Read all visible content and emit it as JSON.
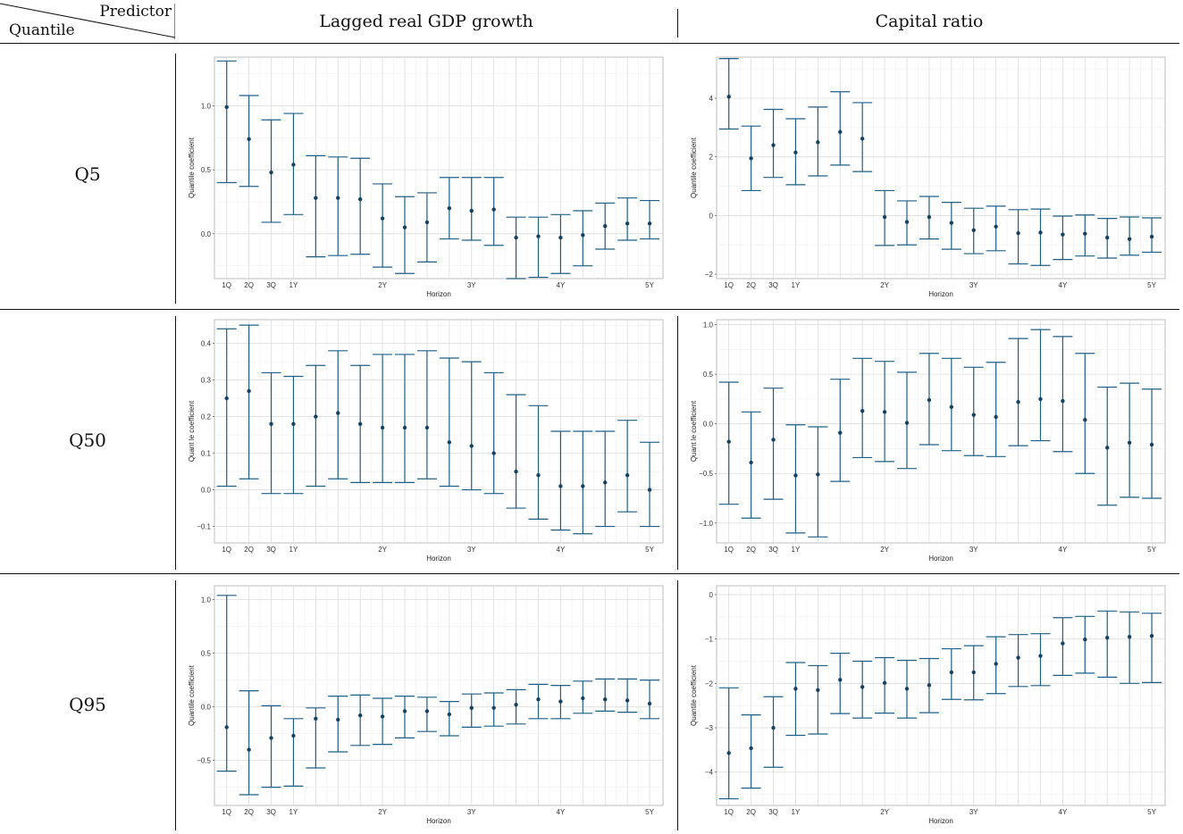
{
  "header": {
    "corner_predictor": "Predictor",
    "corner_quantile": "Quantile",
    "columns": [
      "Lagged real GDP growth",
      "Capital ratio"
    ]
  },
  "rows": [
    "Q5",
    "Q50",
    "Q95"
  ],
  "colors": {
    "series": "#1f5f86",
    "grid": "#dcdcdc",
    "panel_border": "#bdbdbd"
  },
  "chart_data": [
    {
      "type": "scatter",
      "panel": "Q5 / Lagged real GDP growth",
      "xlabel": "Horizon",
      "ylabel": "Quantile coefficient",
      "x_tick_labels": [
        "1Q",
        "2Q",
        "3Q",
        "1Y",
        "2Y",
        "3Y",
        "4Y",
        "5Y"
      ],
      "x_tick_positions": [
        1,
        2,
        3,
        4,
        8,
        12,
        16,
        20
      ],
      "ylim": [
        -0.35,
        1.38
      ],
      "yticks": [
        0.0,
        0.5,
        1.0
      ],
      "ytick_labels": [
        "0.0",
        "0.5",
        "1.0"
      ],
      "x": [
        1,
        2,
        3,
        4,
        5,
        6,
        7,
        8,
        9,
        10,
        11,
        12,
        13,
        14,
        15,
        16,
        17,
        18,
        19,
        20
      ],
      "estimate": [
        0.99,
        0.74,
        0.48,
        0.54,
        0.28,
        0.28,
        0.27,
        0.12,
        0.05,
        0.09,
        0.2,
        0.18,
        0.19,
        -0.03,
        -0.02,
        -0.03,
        -0.01,
        0.06,
        0.08,
        0.08
      ],
      "lower": [
        0.4,
        0.37,
        0.09,
        0.15,
        -0.18,
        -0.17,
        -0.16,
        -0.26,
        -0.31,
        -0.22,
        -0.04,
        -0.05,
        -0.09,
        -0.35,
        -0.34,
        -0.31,
        -0.25,
        -0.12,
        -0.05,
        -0.04
      ],
      "upper": [
        1.35,
        1.08,
        0.89,
        0.94,
        0.61,
        0.6,
        0.59,
        0.39,
        0.29,
        0.32,
        0.44,
        0.44,
        0.44,
        0.13,
        0.13,
        0.15,
        0.18,
        0.24,
        0.28,
        0.26
      ]
    },
    {
      "type": "scatter",
      "panel": "Q5 / Capital ratio",
      "xlabel": "Horizon",
      "ylabel": "Quantile coefficient",
      "x_tick_labels": [
        "1Q",
        "2Q",
        "3Q",
        "1Y",
        "2Y",
        "3Y",
        "4Y",
        "5Y"
      ],
      "x_tick_positions": [
        1,
        2,
        3,
        4,
        8,
        12,
        16,
        20
      ],
      "ylim": [
        -2.15,
        5.4
      ],
      "yticks": [
        -2,
        0,
        2,
        4
      ],
      "ytick_labels": [
        "−2",
        "0",
        "2",
        "4"
      ],
      "x": [
        1,
        2,
        3,
        4,
        5,
        6,
        7,
        8,
        9,
        10,
        11,
        12,
        13,
        14,
        15,
        16,
        17,
        18,
        19,
        20
      ],
      "estimate": [
        4.05,
        1.95,
        2.4,
        2.15,
        2.5,
        2.85,
        2.62,
        -0.05,
        -0.22,
        -0.05,
        -0.25,
        -0.5,
        -0.38,
        -0.6,
        -0.58,
        -0.65,
        -0.62,
        -0.75,
        -0.8,
        -0.72
      ],
      "lower": [
        2.95,
        0.85,
        1.3,
        1.05,
        1.35,
        1.72,
        1.5,
        -1.02,
        -1.0,
        -0.8,
        -1.15,
        -1.3,
        -1.2,
        -1.65,
        -1.7,
        -1.5,
        -1.38,
        -1.45,
        -1.35,
        -1.25
      ],
      "upper": [
        5.35,
        3.05,
        3.62,
        3.3,
        3.7,
        4.22,
        3.85,
        0.85,
        0.5,
        0.65,
        0.45,
        0.25,
        0.32,
        0.2,
        0.22,
        -0.02,
        0.02,
        -0.1,
        -0.05,
        -0.08
      ]
    },
    {
      "type": "scatter",
      "panel": "Q50 / Lagged real GDP growth",
      "xlabel": "Horizon",
      "ylabel": "Quant le coefficient",
      "x_tick_labels": [
        "1Q",
        "2Q",
        "3Q",
        "1Y",
        "2Y",
        "3Y",
        "4Y",
        "5Y"
      ],
      "x_tick_positions": [
        1,
        2,
        3,
        4,
        8,
        12,
        16,
        20
      ],
      "ylim": [
        -0.145,
        0.465
      ],
      "yticks": [
        -0.1,
        0.0,
        0.1,
        0.2,
        0.3,
        0.4
      ],
      "ytick_labels": [
        "−0.1",
        "0.0",
        "0.1",
        "0.2",
        "0.3",
        "0.4"
      ],
      "x": [
        1,
        2,
        3,
        4,
        5,
        6,
        7,
        8,
        9,
        10,
        11,
        12,
        13,
        14,
        15,
        16,
        17,
        18,
        19,
        20
      ],
      "estimate": [
        0.25,
        0.27,
        0.18,
        0.18,
        0.2,
        0.21,
        0.18,
        0.17,
        0.17,
        0.17,
        0.13,
        0.12,
        0.1,
        0.05,
        0.04,
        0.01,
        0.01,
        0.02,
        0.04,
        0.0
      ],
      "lower": [
        0.01,
        0.03,
        -0.01,
        -0.01,
        0.01,
        0.03,
        0.02,
        0.02,
        0.02,
        0.03,
        0.01,
        0.0,
        -0.01,
        -0.05,
        -0.08,
        -0.11,
        -0.12,
        -0.1,
        -0.06,
        -0.1
      ],
      "upper": [
        0.44,
        0.45,
        0.32,
        0.31,
        0.34,
        0.38,
        0.34,
        0.37,
        0.37,
        0.38,
        0.36,
        0.35,
        0.32,
        0.26,
        0.23,
        0.16,
        0.16,
        0.16,
        0.19,
        0.13
      ]
    },
    {
      "type": "scatter",
      "panel": "Q50 / Capital ratio",
      "xlabel": "Horizon",
      "ylabel": "Quant le coefficient",
      "x_tick_labels": [
        "1Q",
        "2Q",
        "3Q",
        "1Y",
        "2Y",
        "3Y",
        "4Y",
        "5Y"
      ],
      "x_tick_positions": [
        1,
        2,
        3,
        4,
        8,
        12,
        16,
        20
      ],
      "ylim": [
        -1.2,
        1.05
      ],
      "yticks": [
        -1.0,
        -0.5,
        0.0,
        0.5,
        1.0
      ],
      "ytick_labels": [
        "−1.0",
        "−0.5",
        "0.0",
        "0.5",
        "1.0"
      ],
      "x": [
        1,
        2,
        3,
        4,
        5,
        6,
        7,
        8,
        9,
        10,
        11,
        12,
        13,
        14,
        15,
        16,
        17,
        18,
        19,
        20
      ],
      "estimate": [
        -0.18,
        -0.39,
        -0.16,
        -0.52,
        -0.51,
        -0.09,
        0.13,
        0.12,
        0.01,
        0.24,
        0.17,
        0.09,
        0.07,
        0.22,
        0.25,
        0.23,
        0.04,
        -0.24,
        -0.19,
        -0.21
      ],
      "lower": [
        -0.81,
        -0.95,
        -0.76,
        -1.1,
        -1.14,
        -0.58,
        -0.34,
        -0.38,
        -0.45,
        -0.21,
        -0.27,
        -0.32,
        -0.33,
        -0.22,
        -0.17,
        -0.28,
        -0.5,
        -0.82,
        -0.74,
        -0.75
      ],
      "upper": [
        0.42,
        0.12,
        0.36,
        -0.01,
        -0.03,
        0.45,
        0.66,
        0.63,
        0.52,
        0.71,
        0.66,
        0.57,
        0.62,
        0.86,
        0.95,
        0.88,
        0.71,
        0.37,
        0.41,
        0.35
      ]
    },
    {
      "type": "scatter",
      "panel": "Q95 / Lagged real GDP growth",
      "xlabel": "Horizon",
      "ylabel": "Quantile coefficient",
      "x_tick_labels": [
        "1Q",
        "2Q",
        "3Q",
        "1Y",
        "2Y",
        "3Y",
        "4Y",
        "5Y"
      ],
      "x_tick_positions": [
        1,
        2,
        3,
        4,
        8,
        12,
        16,
        20
      ],
      "ylim": [
        -0.92,
        1.13
      ],
      "yticks": [
        -0.5,
        0.0,
        0.5,
        1.0
      ],
      "ytick_labels": [
        "−0.5",
        "0.0",
        "0.5",
        "1.0"
      ],
      "x": [
        1,
        2,
        3,
        4,
        5,
        6,
        7,
        8,
        9,
        10,
        11,
        12,
        13,
        14,
        15,
        16,
        17,
        18,
        19,
        20
      ],
      "estimate": [
        -0.19,
        -0.4,
        -0.29,
        -0.27,
        -0.11,
        -0.12,
        -0.08,
        -0.09,
        -0.04,
        -0.04,
        -0.07,
        -0.01,
        -0.01,
        0.02,
        0.07,
        0.05,
        0.08,
        0.07,
        0.06,
        0.03
      ],
      "lower": [
        -0.6,
        -0.82,
        -0.75,
        -0.74,
        -0.57,
        -0.42,
        -0.36,
        -0.35,
        -0.29,
        -0.23,
        -0.27,
        -0.19,
        -0.18,
        -0.16,
        -0.11,
        -0.11,
        -0.06,
        -0.04,
        -0.05,
        -0.11
      ],
      "upper": [
        1.04,
        0.15,
        0.01,
        -0.11,
        -0.01,
        0.1,
        0.11,
        0.08,
        0.1,
        0.09,
        0.05,
        0.12,
        0.13,
        0.16,
        0.21,
        0.2,
        0.24,
        0.26,
        0.26,
        0.25
      ]
    },
    {
      "type": "scatter",
      "panel": "Q95 / Capital ratio",
      "xlabel": "Horizon",
      "ylabel": "Quantile coefficient",
      "x_tick_labels": [
        "1Q",
        "2Q",
        "3Q",
        "1Y",
        "2Y",
        "3Y",
        "4Y",
        "5Y"
      ],
      "x_tick_positions": [
        1,
        2,
        3,
        4,
        8,
        12,
        16,
        20
      ],
      "ylim": [
        -4.75,
        0.2
      ],
      "yticks": [
        -4,
        -3,
        -2,
        -1,
        0
      ],
      "ytick_labels": [
        "−4",
        "−3",
        "−2",
        "−1",
        "0"
      ],
      "x": [
        1,
        2,
        3,
        4,
        5,
        6,
        7,
        8,
        9,
        10,
        11,
        12,
        13,
        14,
        15,
        16,
        17,
        18,
        19,
        20
      ],
      "estimate": [
        -3.57,
        -3.46,
        -3.0,
        -2.12,
        -2.15,
        -1.92,
        -2.08,
        -1.99,
        -2.12,
        -2.04,
        -1.75,
        -1.75,
        -1.56,
        -1.42,
        -1.38,
        -1.1,
        -1.01,
        -0.97,
        -0.95,
        -0.93
      ],
      "lower": [
        -4.6,
        -4.36,
        -3.89,
        -3.17,
        -3.14,
        -2.68,
        -2.78,
        -2.67,
        -2.78,
        -2.66,
        -2.36,
        -2.37,
        -2.23,
        -2.07,
        -2.05,
        -1.82,
        -1.77,
        -1.86,
        -2.0,
        -1.98
      ],
      "upper": [
        -2.1,
        -2.71,
        -2.3,
        -1.53,
        -1.6,
        -1.32,
        -1.5,
        -1.42,
        -1.48,
        -1.44,
        -1.22,
        -1.15,
        -0.95,
        -0.9,
        -0.88,
        -0.52,
        -0.49,
        -0.37,
        -0.39,
        -0.42
      ]
    }
  ]
}
